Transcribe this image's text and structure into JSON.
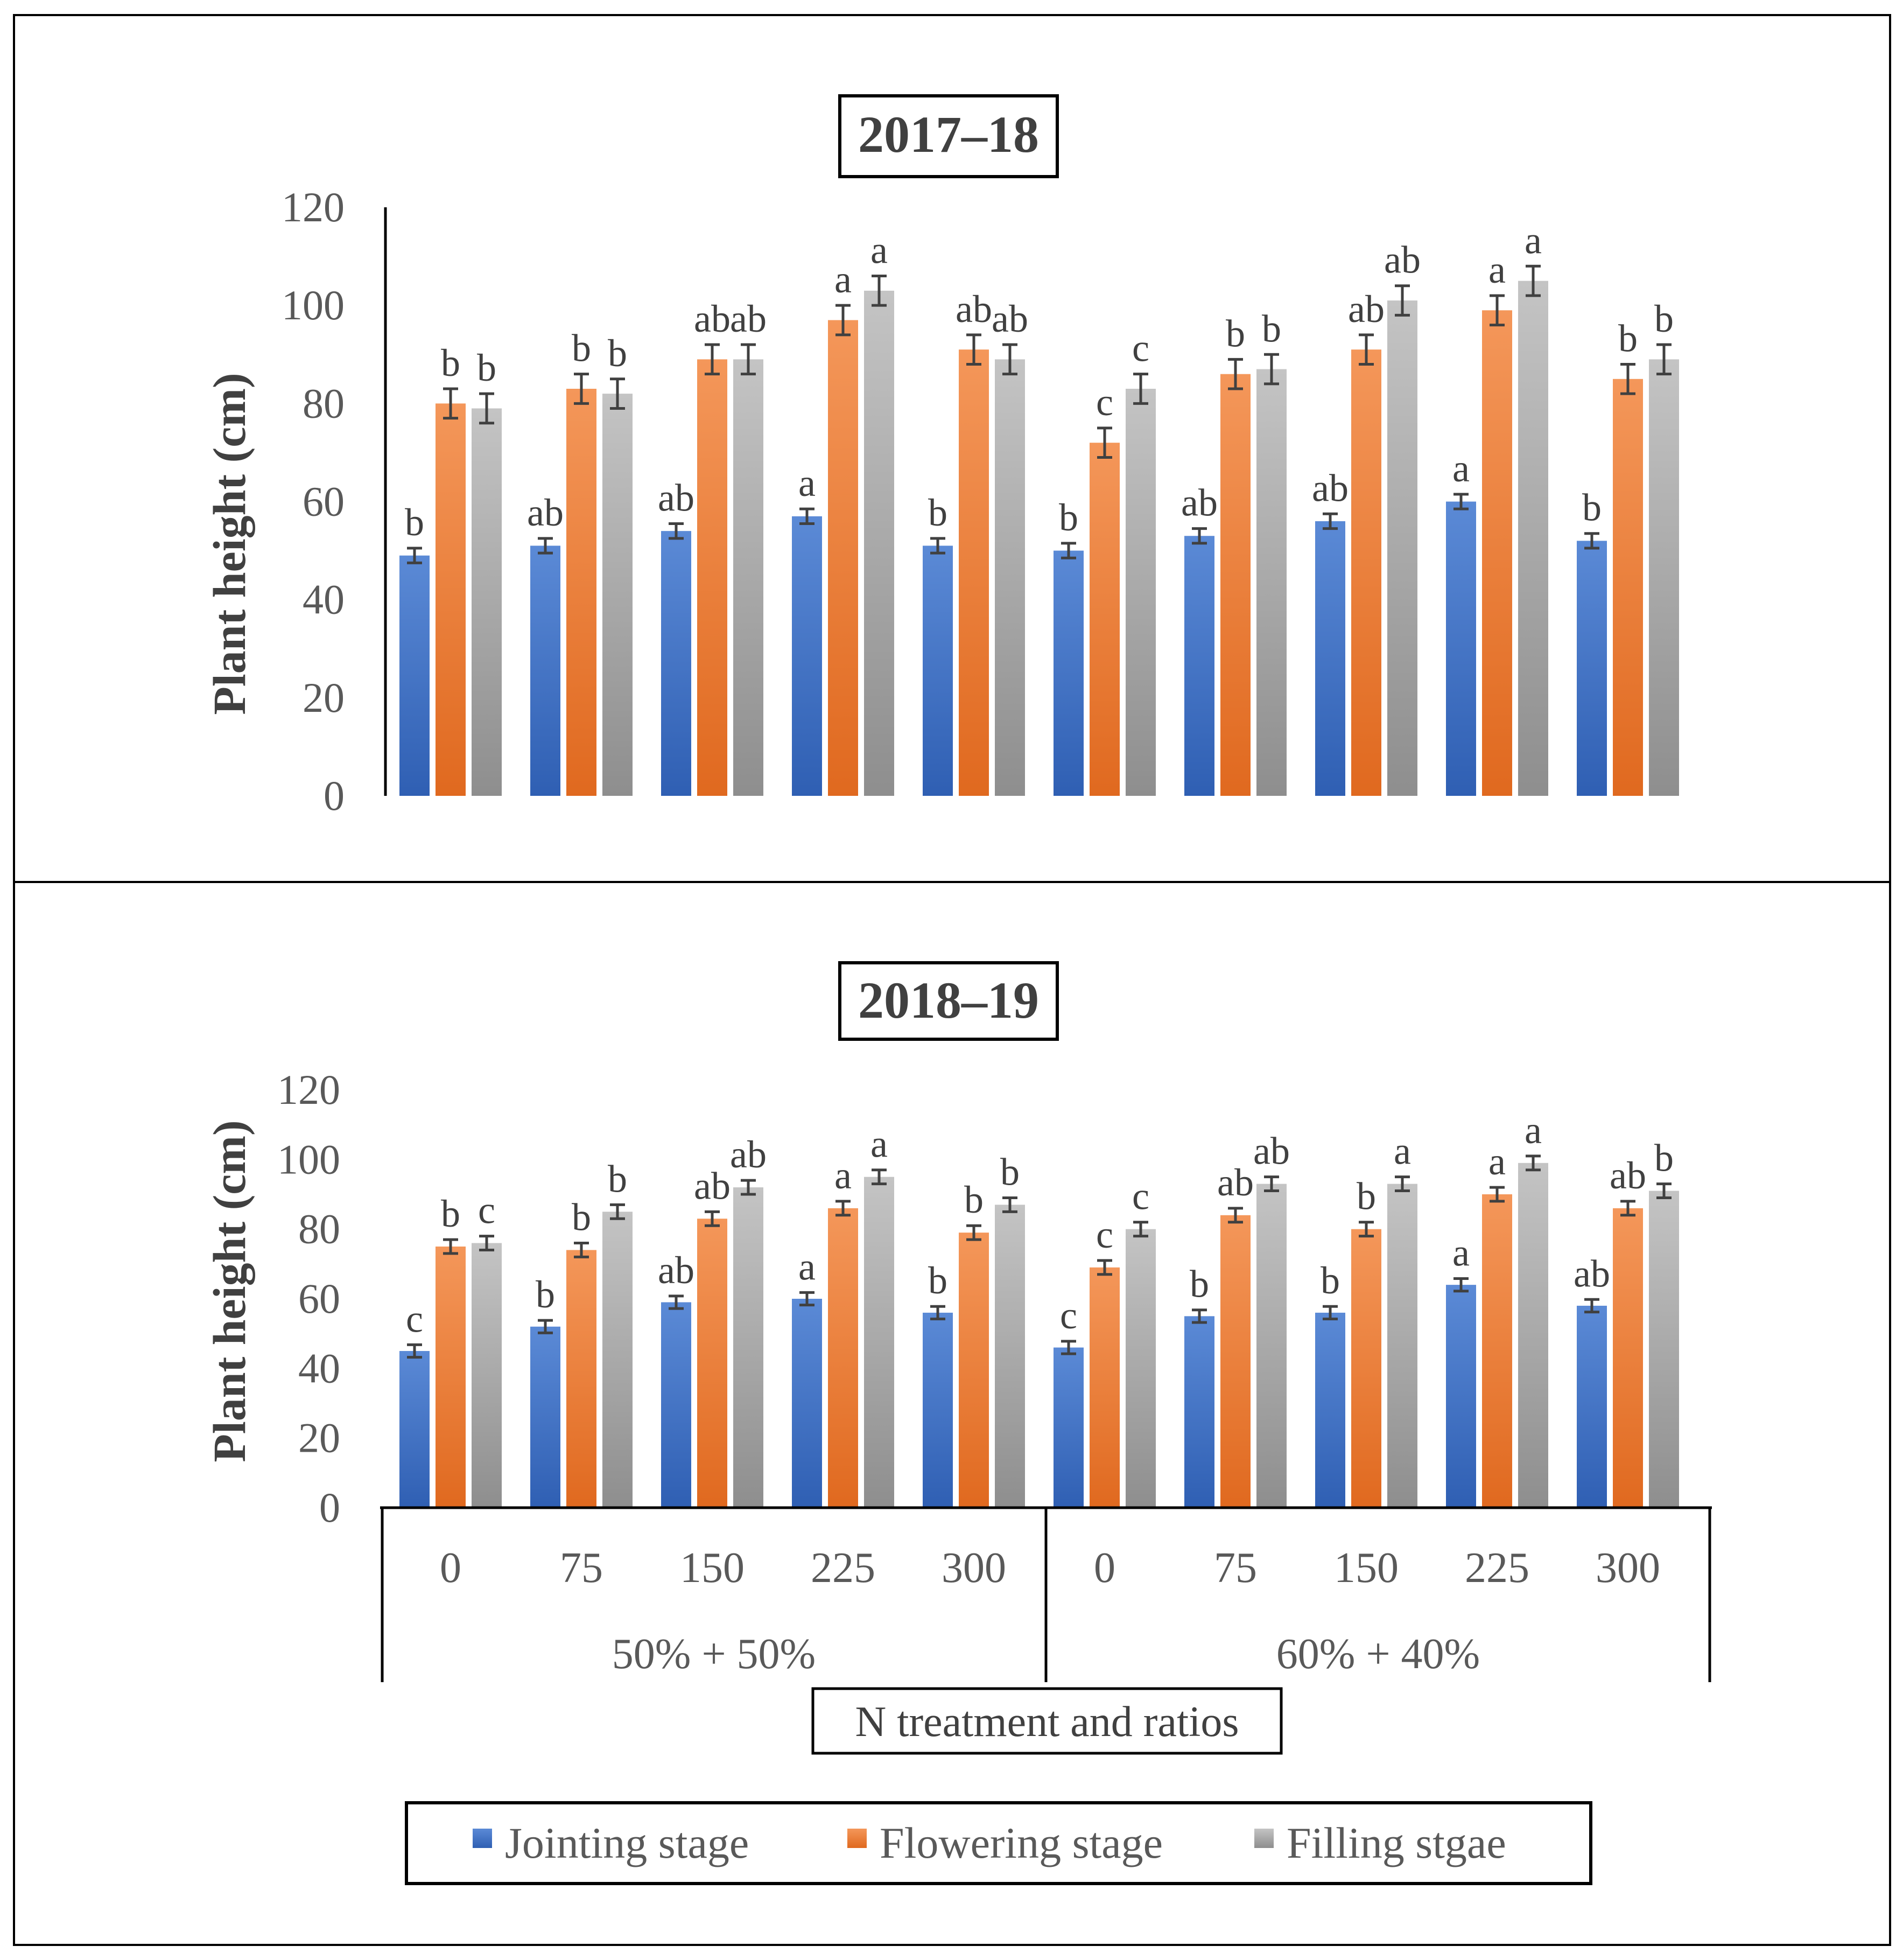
{
  "colors": {
    "jointing": "#4472C4",
    "flowering": "#ED7D31",
    "filling": "#A5A5A5",
    "axis": "#000000",
    "text": "#404040"
  },
  "x_axis": {
    "categories": [
      "0",
      "75",
      "150",
      "225",
      "300",
      "0",
      "75",
      "150",
      "225",
      "300"
    ],
    "groups": [
      "50% + 50%",
      "60% + 40%"
    ],
    "title": "N treatment and ratios"
  },
  "legend": {
    "items": [
      "Jointing stage",
      "Flowering stage",
      "Filling stgae"
    ]
  },
  "chart_data": [
    {
      "type": "bar",
      "title": "2017–18",
      "ylabel": "Plant height (cm)",
      "xlabel": "N treatment and ratios",
      "ylim": [
        0,
        120
      ],
      "yticks": [
        "0",
        "20",
        "40",
        "60",
        "80",
        "100",
        "120"
      ],
      "categories": [
        "0",
        "75",
        "150",
        "225",
        "300",
        "0",
        "75",
        "150",
        "225",
        "300"
      ],
      "series": [
        {
          "name": "Jointing stage",
          "values": [
            49,
            51,
            54,
            57,
            51,
            50,
            53,
            56,
            60,
            52
          ],
          "errors": [
            1.5,
            1.5,
            1.5,
            1.5,
            1.5,
            1.5,
            1.5,
            1.5,
            1.5,
            1.5
          ],
          "letters": [
            "b",
            "ab",
            "ab",
            "a",
            "b",
            "b",
            "ab",
            "ab",
            "a",
            "b"
          ]
        },
        {
          "name": "Flowering stage",
          "values": [
            80,
            83,
            89,
            97,
            91,
            72,
            86,
            91,
            99,
            85
          ],
          "errors": [
            3,
            3,
            3,
            3,
            3,
            3,
            3,
            3,
            3,
            3
          ],
          "letters": [
            "b",
            "b",
            "ab",
            "a",
            "ab",
            "c",
            "b",
            "ab",
            "a",
            "b"
          ]
        },
        {
          "name": "Filling stgae",
          "values": [
            79,
            82,
            89,
            103,
            89,
            83,
            87,
            101,
            105,
            89
          ],
          "errors": [
            3,
            3,
            3,
            3,
            3,
            3,
            3,
            3,
            3,
            3
          ],
          "letters": [
            "b",
            "b",
            "ab",
            "a",
            "ab",
            "c",
            "b",
            "ab",
            "a",
            "b"
          ]
        }
      ]
    },
    {
      "type": "bar",
      "title": "2018–19",
      "ylabel": "Plant height (cm)",
      "xlabel": "N treatment and ratios",
      "ylim": [
        0,
        120
      ],
      "yticks": [
        "0",
        "20",
        "40",
        "60",
        "80",
        "100",
        "120"
      ],
      "categories": [
        "0",
        "75",
        "150",
        "225",
        "300",
        "0",
        "75",
        "150",
        "225",
        "300"
      ],
      "series": [
        {
          "name": "Jointing stage",
          "values": [
            45,
            52,
            59,
            60,
            56,
            46,
            55,
            56,
            64,
            58
          ],
          "errors": [
            1.8,
            1.8,
            1.8,
            1.8,
            1.8,
            1.8,
            1.8,
            1.8,
            1.8,
            1.8
          ],
          "letters": [
            "c",
            "b",
            "ab",
            "a",
            "b",
            "c",
            "b",
            "b",
            "a",
            "ab"
          ]
        },
        {
          "name": "Flowering stage",
          "values": [
            75,
            74,
            83,
            86,
            79,
            69,
            84,
            80,
            90,
            86
          ],
          "errors": [
            2,
            2,
            2,
            2,
            2,
            2,
            2,
            2,
            2,
            2
          ],
          "letters": [
            "b",
            "b",
            "ab",
            "a",
            "b",
            "c",
            "ab",
            "b",
            "a",
            "ab"
          ]
        },
        {
          "name": "Filling stgae",
          "values": [
            76,
            85,
            92,
            95,
            87,
            80,
            93,
            93,
            99,
            91
          ],
          "errors": [
            2,
            2,
            2,
            2,
            2,
            2,
            2,
            2,
            2,
            2
          ],
          "letters": [
            "c",
            "b",
            "ab",
            "a",
            "b",
            "c",
            "ab",
            "a",
            "a",
            "b"
          ]
        }
      ]
    }
  ]
}
